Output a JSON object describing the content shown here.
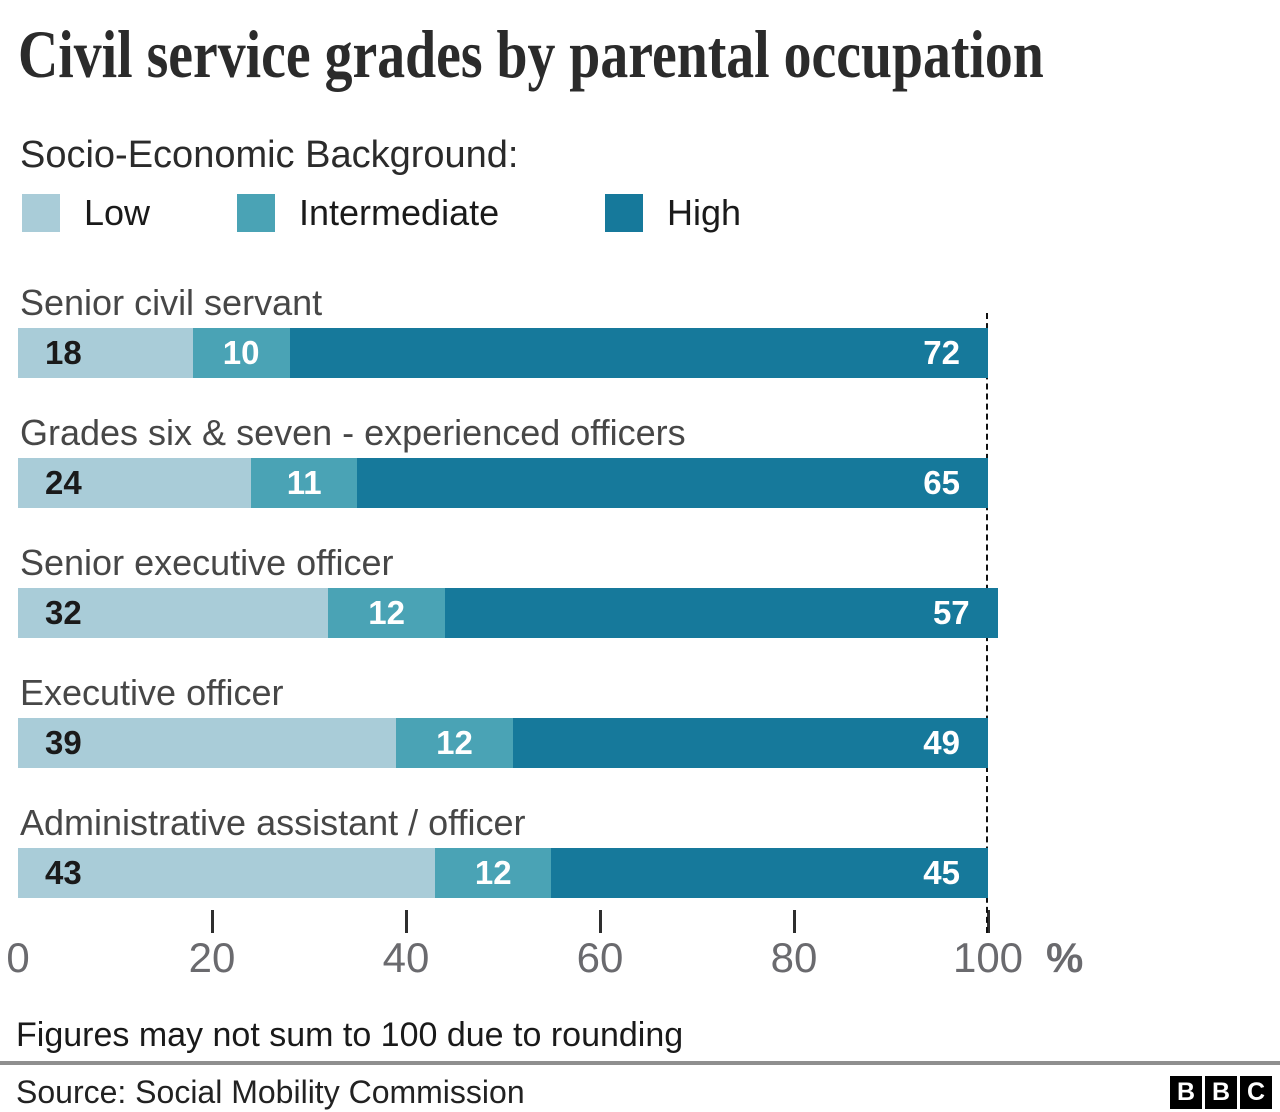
{
  "title": "Civil service grades by parental occupation",
  "legend": {
    "title": "Socio-Economic Background:",
    "items": [
      {
        "label": "Low",
        "color": "#a9ccd8"
      },
      {
        "label": "Intermediate",
        "color": "#4aa3b5"
      },
      {
        "label": "High",
        "color": "#16799b"
      }
    ]
  },
  "chart_data": {
    "type": "bar",
    "orientation": "horizontal",
    "stacked": true,
    "title": "Civil service grades by parental occupation",
    "categories": [
      "Senior civil servant",
      "Grades six & seven - experienced officers",
      "Senior executive officer",
      "Executive officer",
      "Administrative assistant / officer"
    ],
    "series": [
      {
        "name": "Low",
        "color": "#a9ccd8",
        "values": [
          18,
          24,
          32,
          39,
          43
        ]
      },
      {
        "name": "Intermediate",
        "color": "#4aa3b5",
        "values": [
          10,
          11,
          12,
          12,
          12
        ]
      },
      {
        "name": "High",
        "color": "#16799b",
        "values": [
          72,
          65,
          57,
          49,
          45
        ]
      }
    ],
    "xlabel": "%",
    "xlim": [
      0,
      100
    ],
    "x_ticks": [
      0,
      20,
      40,
      60,
      80,
      100
    ],
    "grid": false,
    "legend_position": "top",
    "reference_line_x": 100
  },
  "axis": {
    "tick_labels": [
      "0",
      "20",
      "40",
      "60",
      "80",
      "100"
    ],
    "tick_values": [
      0,
      20,
      40,
      60,
      80,
      100
    ],
    "unit_label": "%"
  },
  "footnote": "Figures may not sum to 100 due to rounding",
  "source": "Source: Social Mobility Commission",
  "logo_letters": [
    "B",
    "B",
    "C"
  ],
  "colors": {
    "low": "#a9ccd8",
    "intermediate": "#4aa3b5",
    "high": "#16799b",
    "axis_text": "#6a6a6e",
    "divider": "#8f8f8f"
  }
}
